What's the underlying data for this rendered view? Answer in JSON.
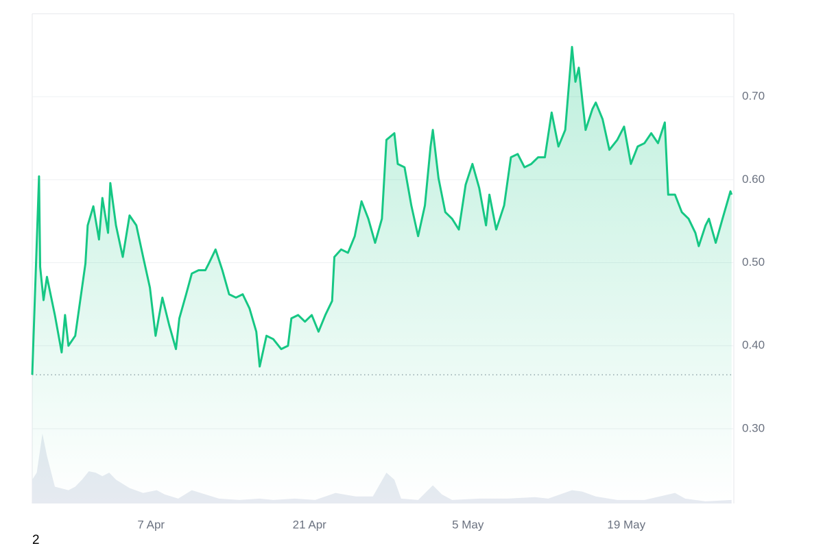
{
  "chart_data": {
    "type": "line",
    "color": "#16c784",
    "x": [
      -10.5,
      -9.9,
      -9.8,
      -9.5,
      -9.2,
      -8.5,
      -7.9,
      -7.6,
      -7.3,
      -6.7,
      -6.1,
      -5.8,
      -5.6,
      -5.1,
      -4.6,
      -4.3,
      -3.8,
      -3.6,
      -3.1,
      -2.5,
      -1.9,
      -1.3,
      -0.7,
      -0.1,
      0.4,
      1.0,
      1.6,
      2.2,
      2.5,
      3.1,
      3.6,
      4.2,
      4.8,
      5.1,
      5.7,
      6.3,
      6.9,
      7.5,
      8.1,
      8.7,
      9.3,
      9.6,
      10.2,
      10.8,
      11.5,
      12.1,
      12.4,
      13.0,
      13.6,
      14.2,
      14.8,
      15.4,
      16.0,
      16.2,
      16.8,
      17.4,
      18.0,
      18.6,
      19.2,
      19.8,
      20.4,
      20.8,
      21.5,
      21.8,
      22.4,
      23.0,
      23.6,
      24.2,
      24.7,
      24.9,
      25.4,
      26.0,
      26.6,
      27.2,
      27.8,
      28.4,
      29.0,
      29.6,
      29.9,
      30.5,
      31.2,
      31.8,
      32.4,
      33.0,
      33.6,
      34.2,
      34.8,
      35.4,
      36.0,
      36.6,
      36.9,
      37.2,
      37.5,
      37.8,
      38.4,
      39.0,
      39.3,
      39.9,
      40.5,
      41.2,
      41.8,
      42.4,
      43.0,
      43.6,
      44.2,
      44.8,
      45.4,
      45.7,
      46.3,
      46.9,
      47.5,
      48.1,
      48.4,
      49.0,
      49.3,
      49.9,
      50.5,
      51.2,
      51.3
    ],
    "values": [
      0.365,
      0.604,
      0.495,
      0.455,
      0.483,
      0.437,
      0.392,
      0.437,
      0.4,
      0.412,
      0.47,
      0.499,
      0.545,
      0.568,
      0.528,
      0.578,
      0.536,
      0.596,
      0.545,
      0.507,
      0.557,
      0.545,
      0.507,
      0.47,
      0.412,
      0.458,
      0.425,
      0.396,
      0.433,
      0.462,
      0.487,
      0.491,
      0.491,
      0.499,
      0.516,
      0.491,
      0.462,
      0.458,
      0.462,
      0.445,
      0.417,
      0.375,
      0.412,
      0.408,
      0.396,
      0.4,
      0.433,
      0.437,
      0.429,
      0.437,
      0.417,
      0.437,
      0.454,
      0.507,
      0.516,
      0.512,
      0.532,
      0.574,
      0.553,
      0.524,
      0.553,
      0.648,
      0.656,
      0.619,
      0.615,
      0.569,
      0.532,
      0.569,
      0.64,
      0.66,
      0.602,
      0.561,
      0.553,
      0.54,
      0.594,
      0.619,
      0.59,
      0.545,
      0.582,
      0.54,
      0.569,
      0.627,
      0.631,
      0.615,
      0.619,
      0.627,
      0.627,
      0.681,
      0.64,
      0.66,
      0.71,
      0.76,
      0.718,
      0.735,
      0.66,
      0.685,
      0.693,
      0.673,
      0.636,
      0.648,
      0.664,
      0.619,
      0.64,
      0.644,
      0.656,
      0.644,
      0.669,
      0.582,
      0.582,
      0.561,
      0.553,
      0.536,
      0.52,
      0.545,
      0.553,
      0.524,
      0.553,
      0.586,
      0.582
    ],
    "baseline": 0.365,
    "volume": {
      "color": "#e6eaf1",
      "x": [
        -10.5,
        -10.1,
        -9.6,
        -9.2,
        -8.5,
        -7.3,
        -6.7,
        -6.1,
        -5.5,
        -4.9,
        -4.3,
        -3.7,
        -3.1,
        -1.9,
        -0.7,
        0.5,
        1.2,
        2.4,
        3.6,
        4.8,
        6.0,
        7.8,
        9.6,
        10.8,
        12.7,
        14.5,
        16.3,
        18.1,
        19.6,
        20.8,
        21.5,
        22.1,
        23.6,
        24.9,
        25.7,
        26.6,
        29.0,
        31.5,
        33.9,
        35.1,
        37.2,
        38.1,
        39.3,
        41.2,
        43.6,
        46.3,
        47.2,
        49.0,
        51.3
      ],
      "values": [
        0.34,
        0.44,
        1.0,
        0.68,
        0.24,
        0.19,
        0.24,
        0.34,
        0.46,
        0.44,
        0.39,
        0.44,
        0.34,
        0.22,
        0.15,
        0.19,
        0.13,
        0.07,
        0.19,
        0.13,
        0.07,
        0.05,
        0.07,
        0.05,
        0.07,
        0.05,
        0.15,
        0.1,
        0.1,
        0.44,
        0.34,
        0.07,
        0.05,
        0.26,
        0.13,
        0.05,
        0.07,
        0.07,
        0.09,
        0.07,
        0.19,
        0.17,
        0.1,
        0.05,
        0.05,
        0.15,
        0.07,
        0.03,
        0.05
      ]
    },
    "xlim": [
      -10.5,
      51.5
    ],
    "xticks": [
      {
        "value": 0,
        "label": "7 Apr"
      },
      {
        "value": 14,
        "label": "21 Apr"
      },
      {
        "value": 28,
        "label": "5 May"
      },
      {
        "value": 42,
        "label": "19 May"
      }
    ],
    "ylim": [
      0.21,
      0.8
    ],
    "yticks": [
      {
        "value": 0.3,
        "label": "0.30"
      },
      {
        "value": 0.4,
        "label": "0.40"
      },
      {
        "value": 0.5,
        "label": "0.50"
      },
      {
        "value": 0.6,
        "label": "0.60"
      },
      {
        "value": 0.7,
        "label": "0.70"
      }
    ],
    "y2lim": [
      0,
      7
    ],
    "grid": true,
    "note": "2"
  }
}
